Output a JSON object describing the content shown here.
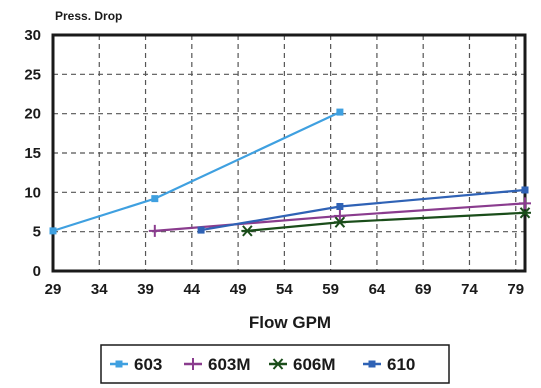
{
  "chart_data": {
    "type": "line",
    "title": "",
    "ylabel": "Press. Drop",
    "xlabel": "Flow GPM",
    "xlim": [
      29,
      80
    ],
    "ylim": [
      0,
      30
    ],
    "x_ticks": [
      "29",
      "34",
      "39",
      "44",
      "49",
      "54",
      "59",
      "64",
      "69",
      "74",
      "79"
    ],
    "y_ticks": [
      "0",
      "5",
      "10",
      "15",
      "20",
      "25",
      "30"
    ],
    "grid": true,
    "legend_position": "bottom",
    "series": [
      {
        "name": "603",
        "color": "#3fa0e0",
        "marker": "square",
        "points": [
          [
            29,
            5.1
          ],
          [
            40,
            9.2
          ],
          [
            60,
            20.2
          ]
        ]
      },
      {
        "name": "603M",
        "color": "#8a3c8e",
        "marker": "plus",
        "points": [
          [
            40,
            5.1
          ],
          [
            60,
            7.0
          ],
          [
            80,
            8.6
          ]
        ]
      },
      {
        "name": "606M",
        "color": "#1a4d1a",
        "marker": "asterisk",
        "points": [
          [
            50,
            5.1
          ],
          [
            60,
            6.2
          ],
          [
            80,
            7.4
          ]
        ]
      },
      {
        "name": "610",
        "color": "#2f62b5",
        "marker": "square",
        "points": [
          [
            45,
            5.2
          ],
          [
            60,
            8.2
          ],
          [
            80,
            10.3
          ]
        ]
      }
    ]
  }
}
